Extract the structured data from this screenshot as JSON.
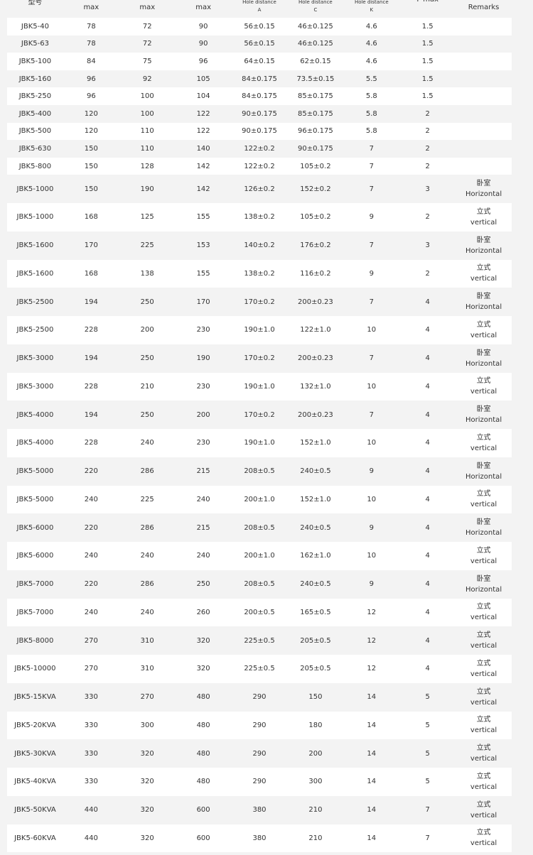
{
  "header": [
    {
      "l1": "型号"
    },
    {
      "l1": "max"
    },
    {
      "l1": "max"
    },
    {
      "l1": "max"
    },
    {
      "l1": "Hole distance",
      "l2": "A"
    },
    {
      "l1": "Hole distance",
      "l2": "C"
    },
    {
      "l1": "Hole distance",
      "l2": "K"
    },
    {
      "l1": "F max"
    },
    {
      "l1": "Remarks"
    }
  ],
  "rows": [
    [
      "JBK5-40",
      "78",
      "72",
      "90",
      "56±0.15",
      "46±0.125",
      "4.6",
      "1.5",
      null,
      null
    ],
    [
      "JBK5-63",
      "78",
      "72",
      "90",
      "56±0.15",
      "46±0.125",
      "4.6",
      "1.5",
      null,
      null
    ],
    [
      "JBK5-100",
      "84",
      "75",
      "96",
      "64±0.15",
      "62±0.15",
      "4.6",
      "1.5",
      null,
      null
    ],
    [
      "JBK5-160",
      "96",
      "92",
      "105",
      "84±0.175",
      "73.5±0.15",
      "5.5",
      "1.5",
      null,
      null
    ],
    [
      "JBK5-250",
      "96",
      "100",
      "104",
      "84±0.175",
      "85±0.175",
      "5.8",
      "1.5",
      null,
      null
    ],
    [
      "JBK5-400",
      "120",
      "100",
      "122",
      "90±0.175",
      "85±0.175",
      "5.8",
      "2",
      null,
      null
    ],
    [
      "JBK5-500",
      "120",
      "110",
      "122",
      "90±0.175",
      "96±0.175",
      "5.8",
      "2",
      null,
      null
    ],
    [
      "JBK5-630",
      "150",
      "110",
      "140",
      "122±0.2",
      "90±0.175",
      "7",
      "2",
      null,
      null
    ],
    [
      "JBK5-800",
      "150",
      "128",
      "142",
      "122±0.2",
      "105±0.2",
      "7",
      "2",
      null,
      null
    ],
    [
      "JBK5-1000",
      "150",
      "190",
      "142",
      "126±0.2",
      "152±0.2",
      "7",
      "3",
      "卧室",
      "Horizontal"
    ],
    [
      "JBK5-1000",
      "168",
      "125",
      "155",
      "138±0.2",
      "105±0.2",
      "9",
      "2",
      "立式",
      "vertical"
    ],
    [
      "JBK5-1600",
      "170",
      "225",
      "153",
      "140±0.2",
      "176±0.2",
      "7",
      "3",
      "卧室",
      "Horizontal"
    ],
    [
      "JBK5-1600",
      "168",
      "138",
      "155",
      "138±0.2",
      "116±0.2",
      "9",
      "2",
      "立式",
      "vertical"
    ],
    [
      "JBK5-2500",
      "194",
      "250",
      "170",
      "170±0.2",
      "200±0.23",
      "7",
      "4",
      "卧室",
      "Horizontal"
    ],
    [
      "JBK5-2500",
      "228",
      "200",
      "230",
      "190±1.0",
      "122±1.0",
      "10",
      "4",
      "立式",
      "vertical"
    ],
    [
      "JBK5-3000",
      "194",
      "250",
      "190",
      "170±0.2",
      "200±0.23",
      "7",
      "4",
      "卧室",
      "Horizontal"
    ],
    [
      "JBK5-3000",
      "228",
      "210",
      "230",
      "190±1.0",
      "132±1.0",
      "10",
      "4",
      "立式",
      "vertical"
    ],
    [
      "JBK5-4000",
      "194",
      "250",
      "200",
      "170±0.2",
      "200±0.23",
      "7",
      "4",
      "卧室",
      "Horizontal"
    ],
    [
      "JBK5-4000",
      "228",
      "240",
      "230",
      "190±1.0",
      "152±1.0",
      "10",
      "4",
      "立式",
      "vertical"
    ],
    [
      "JBK5-5000",
      "220",
      "286",
      "215",
      "208±0.5",
      "240±0.5",
      "9",
      "4",
      "卧室",
      "Horizontal"
    ],
    [
      "JBK5-5000",
      "240",
      "225",
      "240",
      "200±1.0",
      "152±1.0",
      "10",
      "4",
      "立式",
      "vertical"
    ],
    [
      "JBK5-6000",
      "220",
      "286",
      "215",
      "208±0.5",
      "240±0.5",
      "9",
      "4",
      "卧室",
      "Horizontal"
    ],
    [
      "JBK5-6000",
      "240",
      "240",
      "240",
      "200±1.0",
      "162±1.0",
      "10",
      "4",
      "立式",
      "vertical"
    ],
    [
      "JBK5-7000",
      "220",
      "286",
      "250",
      "208±0.5",
      "240±0.5",
      "9",
      "4",
      "卧室",
      "Horizontal"
    ],
    [
      "JBK5-7000",
      "240",
      "240",
      "260",
      "200±0.5",
      "165±0.5",
      "12",
      "4",
      "立式",
      "vertical"
    ],
    [
      "JBK5-8000",
      "270",
      "310",
      "320",
      "225±0.5",
      "205±0.5",
      "12",
      "4",
      "立式",
      "vertical"
    ],
    [
      "JBK5-10000",
      "270",
      "310",
      "320",
      "225±0.5",
      "205±0.5",
      "12",
      "4",
      "立式",
      "vertical"
    ],
    [
      "JBK5-15KVA",
      "330",
      "270",
      "480",
      "290",
      "150",
      "14",
      "5",
      "立式",
      "vertical"
    ],
    [
      "JBK5-20KVA",
      "330",
      "300",
      "480",
      "290",
      "180",
      "14",
      "5",
      "立式",
      "vertical"
    ],
    [
      "JBK5-30KVA",
      "330",
      "320",
      "480",
      "290",
      "200",
      "14",
      "5",
      "立式",
      "vertical"
    ],
    [
      "JBK5-40KVA",
      "330",
      "320",
      "480",
      "290",
      "300",
      "14",
      "5",
      "立式",
      "vertical"
    ],
    [
      "JBK5-50KVA",
      "440",
      "320",
      "600",
      "380",
      "210",
      "14",
      "7",
      "立式",
      "vertical"
    ],
    [
      "JBK5-60KVA",
      "440",
      "320",
      "600",
      "380",
      "210",
      "14",
      "7",
      "立式",
      "vertical"
    ]
  ]
}
